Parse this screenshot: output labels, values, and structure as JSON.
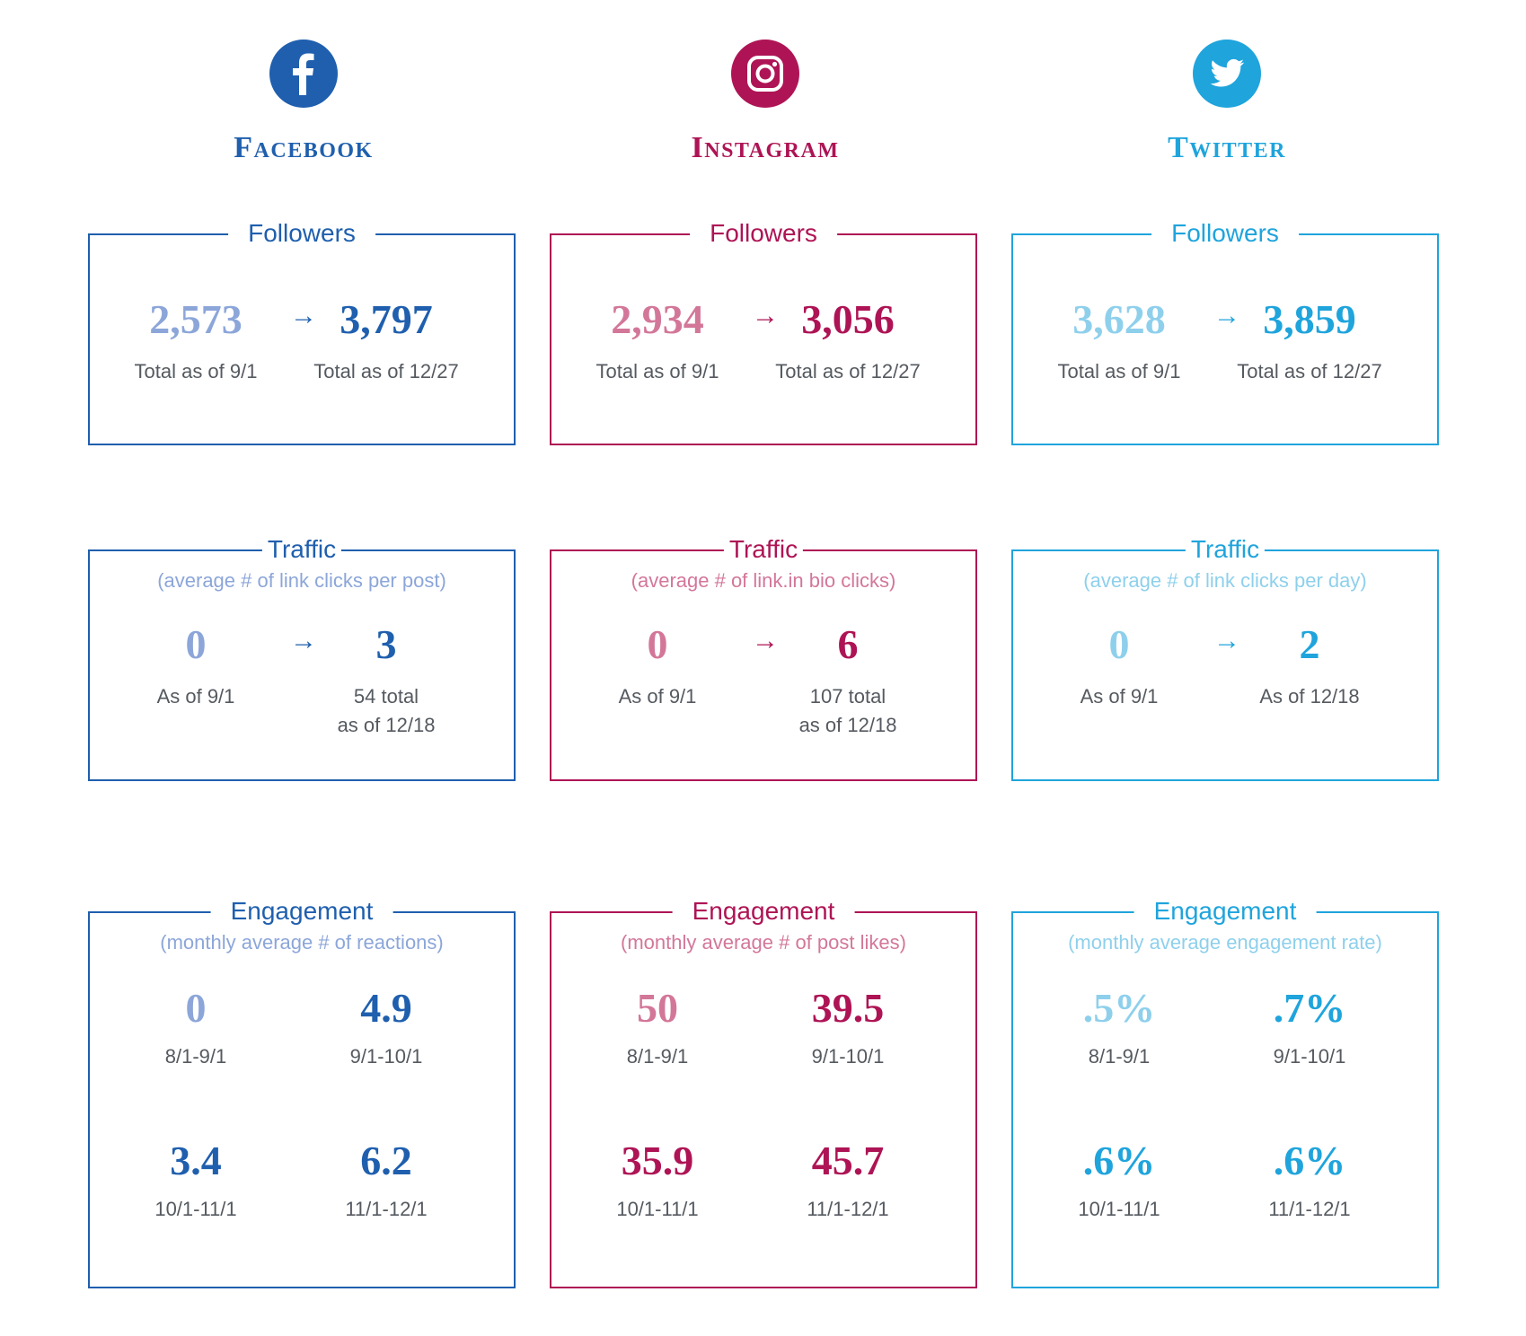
{
  "platforms": [
    {
      "key": "facebook",
      "name": "Facebook",
      "icon": "facebook-icon",
      "color": "#1f5fae",
      "followers": {
        "title": "Followers",
        "start_value": "2,573",
        "start_label": "Total as of 9/1",
        "end_value": "3,797",
        "end_label": "Total as of 12/27"
      },
      "traffic": {
        "title": "Traffic",
        "subtitle": "(average # of link clicks per post)",
        "start_value": "0",
        "start_label": "As of 9/1",
        "end_value": "3",
        "end_label": "54 total\nas of 12/18"
      },
      "engagement": {
        "title": "Engagement",
        "subtitle": "(monthly average # of reactions)",
        "values": [
          {
            "value": "0",
            "label": "8/1-9/1"
          },
          {
            "value": "4.9",
            "label": "9/1-10/1"
          },
          {
            "value": "3.4",
            "label": "10/1-11/1"
          },
          {
            "value": "6.2",
            "label": "11/1-12/1"
          }
        ]
      }
    },
    {
      "key": "instagram",
      "name": "Instagram",
      "icon": "instagram-icon",
      "color": "#ae1455",
      "followers": {
        "title": "Followers",
        "start_value": "2,934",
        "start_label": "Total as of 9/1",
        "end_value": "3,056",
        "end_label": "Total as of 12/27"
      },
      "traffic": {
        "title": "Traffic",
        "subtitle": "(average # of link.in bio clicks)",
        "start_value": "0",
        "start_label": "As of 9/1",
        "end_value": "6",
        "end_label": "107 total\nas of 12/18"
      },
      "engagement": {
        "title": "Engagement",
        "subtitle": "(monthly average # of post likes)",
        "values": [
          {
            "value": "50",
            "label": "8/1-9/1"
          },
          {
            "value": "39.5",
            "label": "9/1-10/1"
          },
          {
            "value": "35.9",
            "label": "10/1-11/1"
          },
          {
            "value": "45.7",
            "label": "11/1-12/1"
          }
        ]
      }
    },
    {
      "key": "twitter",
      "name": "Twitter",
      "icon": "twitter-bird-icon",
      "color": "#1fa4dc",
      "followers": {
        "title": "Followers",
        "start_value": "3,628",
        "start_label": "Total as of 9/1",
        "end_value": "3,859",
        "end_label": "Total as of 12/27"
      },
      "traffic": {
        "title": "Traffic",
        "subtitle": "(average # of link clicks per day)",
        "start_value": "0",
        "start_label": "As of 9/1",
        "end_value": "2",
        "end_label": "As of 12/18"
      },
      "engagement": {
        "title": "Engagement",
        "subtitle": "(monthly average engagement rate)",
        "values": [
          {
            "value": ".5%",
            "label": "8/1-9/1"
          },
          {
            "value": ".7%",
            "label": "9/1-10/1"
          },
          {
            "value": ".6%",
            "label": "10/1-11/1"
          },
          {
            "value": ".6%",
            "label": "11/1-12/1"
          }
        ]
      }
    }
  ],
  "arrow_glyph": "→"
}
